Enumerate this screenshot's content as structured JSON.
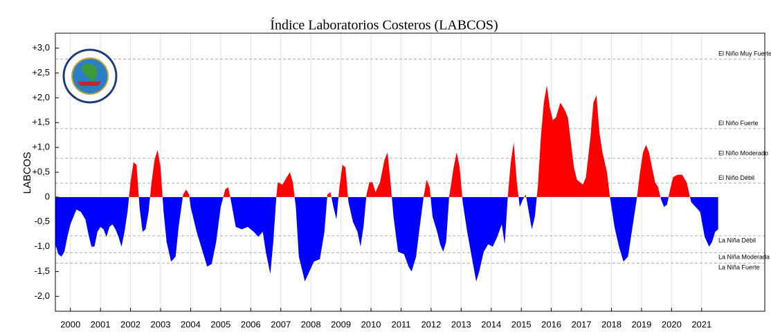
{
  "chart_data": {
    "type": "area",
    "title": "Índice Laboratorios Costeros (LABCOS)",
    "y_label": "LABCOS",
    "xlim": [
      1999.5,
      2023.1
    ],
    "ylim": [
      -2.3,
      3.3
    ],
    "xticks": [
      2000,
      2001,
      2002,
      2003,
      2004,
      2005,
      2006,
      2007,
      2008,
      2009,
      2010,
      2011,
      2012,
      2013,
      2014,
      2015,
      2016,
      2017,
      2018,
      2019,
      2020,
      2021
    ],
    "yticks": [
      {
        "value": 3,
        "label": "+3,0"
      },
      {
        "value": 2.5,
        "label": "+2,5"
      },
      {
        "value": 2,
        "label": "+2,0"
      },
      {
        "value": 1.5,
        "label": "+1,5"
      },
      {
        "value": 1,
        "label": "+1,0"
      },
      {
        "value": 0.5,
        "label": "+0,5"
      },
      0,
      {
        "value": -0.5,
        "label": "-0,5"
      },
      {
        "value": -1,
        "label": "-1,0"
      },
      {
        "value": -1.5,
        "label": "-1,5"
      },
      {
        "value": -2,
        "label": "-2,0"
      }
    ],
    "grid": true,
    "color": "#ff0000",
    "negative_color": "#0000ff",
    "reference_lines": [
      {
        "value": 2.78,
        "label": "El Niño Muy Fuerte"
      },
      {
        "value": 1.38,
        "label": "El Niño Fuerte"
      },
      {
        "value": 0.78,
        "label": "El Niño Moderado"
      },
      {
        "value": 0.28,
        "label": "El Niño Débil"
      },
      {
        "value": -0.78,
        "label": "La Niña Débil"
      },
      {
        "value": -1.12,
        "label": "La Niña Moderada"
      },
      {
        "value": -1.33,
        "label": "La Niña Fuerte"
      }
    ],
    "x": [
      1999.5,
      1999.6,
      1999.7,
      1999.8,
      1999.9,
      2000.0,
      2000.1,
      2000.2,
      2000.35,
      2000.5,
      2000.6,
      2000.7,
      2000.8,
      2000.9,
      2001.0,
      2001.1,
      2001.2,
      2001.3,
      2001.4,
      2001.5,
      2001.6,
      2001.7,
      2001.8,
      2001.9,
      2002.0,
      2002.1,
      2002.2,
      2002.3,
      2002.4,
      2002.5,
      2002.6,
      2002.7,
      2002.8,
      2002.9,
      2003.0,
      2003.1,
      2003.2,
      2003.35,
      2003.5,
      2003.6,
      2003.75,
      2003.85,
      2003.95,
      2004.0,
      2004.2,
      2004.4,
      2004.55,
      2004.7,
      2004.85,
      2005.0,
      2005.15,
      2005.25,
      2005.35,
      2005.5,
      2005.7,
      2005.9,
      2006.1,
      2006.25,
      2006.4,
      2006.5,
      2006.65,
      2006.75,
      2006.85,
      2006.9,
      2007.05,
      2007.15,
      2007.3,
      2007.4,
      2007.5,
      2007.6,
      2007.8,
      2007.95,
      2008.1,
      2008.3,
      2008.45,
      2008.55,
      2008.65,
      2008.75,
      2008.85,
      2008.95,
      2009.05,
      2009.15,
      2009.25,
      2009.4,
      2009.55,
      2009.65,
      2009.75,
      2009.85,
      2009.95,
      2010.05,
      2010.15,
      2010.3,
      2010.45,
      2010.55,
      2010.65,
      2010.75,
      2010.9,
      2011.1,
      2011.25,
      2011.35,
      2011.5,
      2011.6,
      2011.75,
      2011.85,
      2011.95,
      2012.05,
      2012.2,
      2012.3,
      2012.4,
      2012.5,
      2012.6,
      2012.75,
      2012.85,
      2012.95,
      2013.05,
      2013.2,
      2013.35,
      2013.5,
      2013.6,
      2013.75,
      2013.9,
      2014.05,
      2014.2,
      2014.35,
      2014.45,
      2014.55,
      2014.65,
      2014.75,
      2014.85,
      2014.95,
      2015.05,
      2015.15,
      2015.25,
      2015.35,
      2015.45,
      2015.55,
      2015.65,
      2015.75,
      2015.85,
      2015.95,
      2016.05,
      2016.15,
      2016.3,
      2016.45,
      2016.55,
      2016.65,
      2016.75,
      2016.85,
      2016.95,
      2017.05,
      2017.15,
      2017.3,
      2017.4,
      2017.5,
      2017.6,
      2017.7,
      2017.85,
      2017.95,
      2018.1,
      2018.25,
      2018.4,
      2018.55,
      2018.7,
      2018.85,
      2018.95,
      2019.05,
      2019.15,
      2019.25,
      2019.35,
      2019.45,
      2019.55,
      2019.65,
      2019.75,
      2019.85,
      2019.95,
      2020.05,
      2020.2,
      2020.35,
      2020.5,
      2020.65,
      2020.8,
      2020.95,
      2021.1,
      2021.25,
      2021.35,
      2021.45,
      2021.55
    ],
    "values": [
      -0.95,
      -1.15,
      -1.2,
      -1.1,
      -0.8,
      -0.55,
      -0.4,
      -0.25,
      -0.3,
      -0.45,
      -0.75,
      -1.0,
      -1.0,
      -0.7,
      -0.6,
      -0.65,
      -0.8,
      -0.6,
      -0.55,
      -0.65,
      -0.8,
      -1.0,
      -0.7,
      -0.3,
      0.3,
      0.7,
      0.65,
      -0.2,
      -0.7,
      -0.65,
      -0.3,
      0.3,
      0.75,
      0.95,
      0.6,
      -0.3,
      -0.9,
      -1.3,
      -1.2,
      -0.6,
      0.05,
      0.15,
      0.05,
      -0.2,
      -0.7,
      -1.1,
      -1.4,
      -1.35,
      -0.9,
      -0.2,
      0.15,
      0.2,
      -0.1,
      -0.6,
      -0.65,
      -0.6,
      -0.7,
      -0.8,
      -0.7,
      -1.1,
      -1.55,
      -0.9,
      0.0,
      0.3,
      0.25,
      0.35,
      0.5,
      0.3,
      -0.2,
      -1.2,
      -1.7,
      -1.5,
      -1.3,
      -1.25,
      -0.7,
      0.05,
      0.1,
      -0.2,
      -0.45,
      0.2,
      0.65,
      0.6,
      -0.1,
      -0.5,
      -0.7,
      -1.0,
      -0.6,
      0.05,
      0.3,
      0.3,
      0.1,
      0.3,
      0.75,
      0.9,
      0.3,
      -0.4,
      -1.1,
      -1.15,
      -1.4,
      -1.5,
      -1.2,
      -0.7,
      0.0,
      0.35,
      0.2,
      -0.4,
      -0.7,
      -0.95,
      -1.1,
      -0.9,
      0.0,
      0.6,
      0.9,
      0.6,
      -0.1,
      -0.7,
      -1.2,
      -1.7,
      -1.5,
      -1.1,
      -0.95,
      -1.0,
      -0.8,
      -0.55,
      -0.95,
      0.0,
      0.7,
      1.1,
      0.3,
      -0.2,
      -0.05,
      0.05,
      -0.3,
      -0.65,
      -0.4,
      0.2,
      1.2,
      1.9,
      2.25,
      1.8,
      1.55,
      1.6,
      1.9,
      1.75,
      1.6,
      1.1,
      0.6,
      0.35,
      0.3,
      0.25,
      0.4,
      1.2,
      1.9,
      2.05,
      1.3,
      0.9,
      0.5,
      0.0,
      -0.6,
      -1.0,
      -1.3,
      -1.2,
      -0.6,
      0.0,
      0.5,
      0.9,
      1.05,
      0.9,
      0.6,
      0.3,
      0.2,
      -0.05,
      -0.2,
      -0.15,
      0.15,
      0.4,
      0.45,
      0.45,
      0.3,
      -0.1,
      -0.2,
      -0.3,
      -0.8,
      -1.0,
      -0.9,
      -0.7,
      -0.65
    ]
  }
}
